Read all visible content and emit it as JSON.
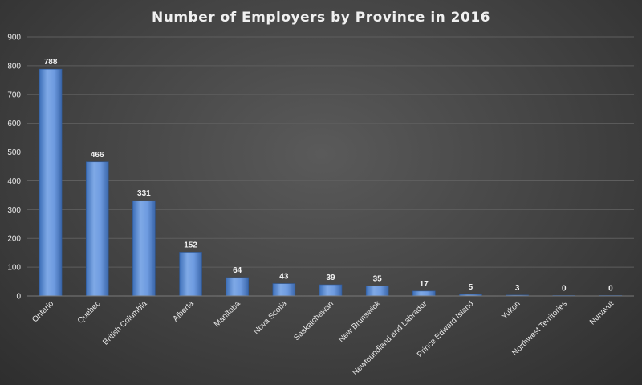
{
  "chart_data": {
    "type": "bar",
    "title": "Number of Employers by Province in 2016",
    "xlabel": "",
    "ylabel": "",
    "categories": [
      "Ontario",
      "Quebec",
      "British Columbia",
      "Alberta",
      "Manitoba",
      "Nova Scotia",
      "Saskatchewan",
      "New Brunswick",
      "Newfoundland and Labrador",
      "Prince Edward Island",
      "Yukon",
      "Northwest Territories",
      "Nunavut"
    ],
    "values": [
      788,
      466,
      331,
      152,
      64,
      43,
      39,
      35,
      17,
      5,
      3,
      0,
      0
    ],
    "ylim": [
      0,
      900
    ],
    "yticks": [
      0,
      100,
      200,
      300,
      400,
      500,
      600,
      700,
      800,
      900
    ],
    "grid": true,
    "legend": "none",
    "bar_color": "#5b8fd6"
  }
}
